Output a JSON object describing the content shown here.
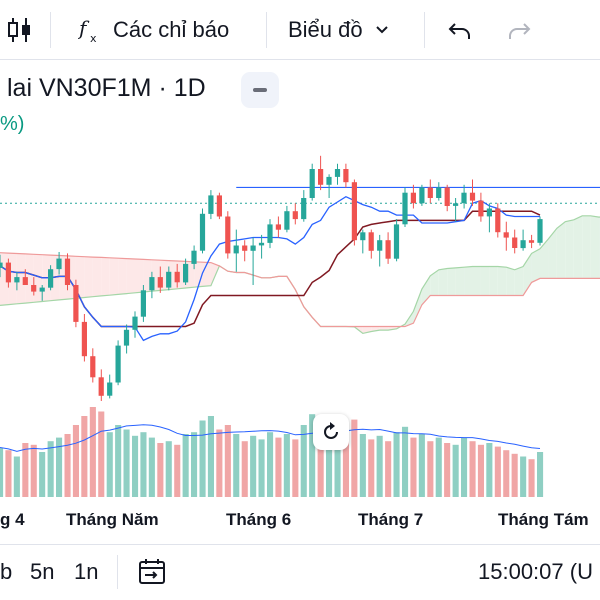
{
  "toolbar": {
    "indicators_label": "Các chỉ báo",
    "chart_type_label": "Biểu đồ"
  },
  "header": {
    "symbol_title": "lai VN30F1M · 1D",
    "change_text": "%)"
  },
  "colors": {
    "up": "#26a69a",
    "down": "#ef5350",
    "vol_up": "#8fcfc3",
    "vol_down": "#f0a6a6",
    "tenkan": "#2962ff",
    "kijun": "#801922",
    "cloud_bull": "#e3f2e6",
    "cloud_bear": "#fde8e8",
    "span_a": "#a5d6a7",
    "span_b": "#ef9a9a"
  },
  "chart_data": {
    "type": "candlestick",
    "x_labels": [
      "g 4",
      "Tháng Năm",
      "Tháng 6",
      "Tháng 7",
      "Tháng Tám"
    ],
    "candles_ohlc": [
      [
        1283,
        1293,
        1276,
        1287
      ],
      [
        1287,
        1290,
        1268,
        1272
      ],
      [
        1272,
        1280,
        1266,
        1276
      ],
      [
        1276,
        1282,
        1270,
        1270
      ],
      [
        1270,
        1276,
        1262,
        1265
      ],
      [
        1265,
        1270,
        1258,
        1268
      ],
      [
        1268,
        1285,
        1266,
        1282
      ],
      [
        1282,
        1295,
        1278,
        1290
      ],
      [
        1290,
        1294,
        1266,
        1270
      ],
      [
        1270,
        1274,
        1238,
        1242
      ],
      [
        1242,
        1248,
        1212,
        1216
      ],
      [
        1216,
        1222,
        1196,
        1200
      ],
      [
        1200,
        1206,
        1182,
        1186
      ],
      [
        1186,
        1202,
        1184,
        1196
      ],
      [
        1196,
        1228,
        1194,
        1224
      ],
      [
        1224,
        1240,
        1218,
        1236
      ],
      [
        1236,
        1250,
        1230,
        1246
      ],
      [
        1246,
        1270,
        1242,
        1266
      ],
      [
        1266,
        1280,
        1260,
        1276
      ],
      [
        1276,
        1284,
        1264,
        1268
      ],
      [
        1268,
        1284,
        1266,
        1280
      ],
      [
        1280,
        1286,
        1268,
        1272
      ],
      [
        1272,
        1290,
        1270,
        1286
      ],
      [
        1286,
        1300,
        1282,
        1296
      ],
      [
        1296,
        1328,
        1294,
        1324
      ],
      [
        1324,
        1342,
        1320,
        1338
      ],
      [
        1338,
        1340,
        1320,
        1322
      ],
      [
        1322,
        1326,
        1290,
        1294
      ],
      [
        1294,
        1312,
        1280,
        1300
      ],
      [
        1300,
        1304,
        1288,
        1296
      ],
      [
        1296,
        1306,
        1270,
        1300
      ],
      [
        1300,
        1308,
        1290,
        1302
      ],
      [
        1302,
        1320,
        1298,
        1316
      ],
      [
        1316,
        1322,
        1306,
        1312
      ],
      [
        1312,
        1330,
        1310,
        1326
      ],
      [
        1326,
        1332,
        1316,
        1320
      ],
      [
        1320,
        1342,
        1318,
        1336
      ],
      [
        1336,
        1362,
        1334,
        1358
      ],
      [
        1358,
        1368,
        1342,
        1346
      ],
      [
        1346,
        1354,
        1336,
        1352
      ],
      [
        1352,
        1362,
        1346,
        1358
      ],
      [
        1358,
        1362,
        1344,
        1348
      ],
      [
        1348,
        1350,
        1300,
        1304
      ],
      [
        1304,
        1312,
        1294,
        1310
      ],
      [
        1310,
        1312,
        1290,
        1296
      ],
      [
        1296,
        1308,
        1284,
        1304
      ],
      [
        1304,
        1310,
        1286,
        1290
      ],
      [
        1290,
        1320,
        1288,
        1316
      ],
      [
        1316,
        1344,
        1314,
        1340
      ],
      [
        1340,
        1346,
        1328,
        1332
      ],
      [
        1332,
        1346,
        1330,
        1344
      ],
      [
        1344,
        1350,
        1332,
        1336
      ],
      [
        1336,
        1348,
        1334,
        1344
      ],
      [
        1344,
        1346,
        1326,
        1330
      ],
      [
        1330,
        1336,
        1318,
        1332
      ],
      [
        1332,
        1346,
        1328,
        1340
      ],
      [
        1340,
        1350,
        1330,
        1334
      ],
      [
        1334,
        1340,
        1318,
        1322
      ],
      [
        1322,
        1332,
        1310,
        1328
      ],
      [
        1328,
        1332,
        1306,
        1310
      ],
      [
        1310,
        1318,
        1296,
        1306
      ],
      [
        1306,
        1312,
        1294,
        1298
      ],
      [
        1298,
        1312,
        1296,
        1304
      ],
      [
        1304,
        1308,
        1298,
        1302
      ],
      [
        1302,
        1322,
        1300,
        1320
      ]
    ],
    "volume": [
      0.55,
      0.52,
      0.45,
      0.6,
      0.58,
      0.5,
      0.62,
      0.66,
      0.7,
      0.8,
      0.9,
      1.0,
      0.95,
      0.72,
      0.8,
      0.75,
      0.68,
      0.72,
      0.66,
      0.6,
      0.62,
      0.58,
      0.7,
      0.72,
      0.85,
      0.9,
      0.75,
      0.8,
      0.7,
      0.62,
      0.68,
      0.64,
      0.72,
      0.66,
      0.7,
      0.64,
      0.8,
      0.92,
      0.78,
      0.74,
      0.72,
      0.66,
      0.86,
      0.7,
      0.64,
      0.68,
      0.62,
      0.72,
      0.78,
      0.66,
      0.7,
      0.62,
      0.66,
      0.6,
      0.58,
      0.66,
      0.62,
      0.58,
      0.6,
      0.56,
      0.52,
      0.48,
      0.45,
      0.42,
      0.5
    ],
    "resistance_level": 1344,
    "last_price_level": 1332
  }
}
